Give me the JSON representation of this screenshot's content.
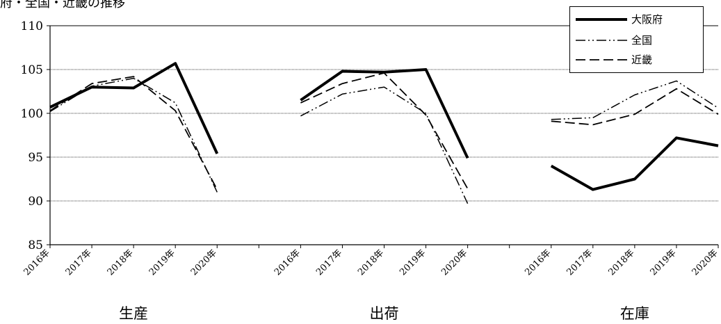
{
  "title": "府・全国・近畿の推移",
  "chart_data": {
    "type": "line",
    "panels": [
      {
        "name": "生産",
        "categories": [
          "2016年",
          "2017年",
          "2018年",
          "2019年",
          "2020年"
        ]
      },
      {
        "name": "出荷",
        "categories": [
          "2016年",
          "2017年",
          "2018年",
          "2019年",
          "2020年"
        ]
      },
      {
        "name": "在庫",
        "categories": [
          "2016年",
          "2017年",
          "2018年",
          "2019年",
          "2020年"
        ]
      }
    ],
    "ylim": [
      85,
      110
    ],
    "yticks": [
      "85",
      "90",
      "95",
      "100",
      "105",
      "110"
    ],
    "gridlines": [
      90,
      95,
      100,
      105
    ],
    "legend_position": "top-right",
    "series": [
      {
        "name": "大阪府",
        "style": "solid-thick",
        "values": [
          [
            100.7,
            103.0,
            102.9,
            105.7,
            95.4
          ],
          [
            101.5,
            104.8,
            104.7,
            105.0,
            94.9
          ],
          [
            94.0,
            91.3,
            92.5,
            97.2,
            96.3
          ]
        ]
      },
      {
        "name": "全国",
        "style": "dash-dot-dot",
        "values": [
          [
            100.2,
            103.1,
            104.0,
            101.2,
            91.0
          ],
          [
            99.7,
            102.2,
            103.0,
            100.0,
            89.7
          ],
          [
            99.3,
            99.5,
            102.1,
            103.7,
            100.6
          ]
        ]
      },
      {
        "name": "近畿",
        "style": "dashed",
        "values": [
          [
            100.3,
            103.4,
            104.2,
            100.3,
            91.3
          ],
          [
            101.2,
            103.4,
            104.6,
            99.8,
            91.4
          ],
          [
            99.1,
            98.7,
            99.9,
            102.8,
            99.9
          ]
        ]
      }
    ]
  }
}
